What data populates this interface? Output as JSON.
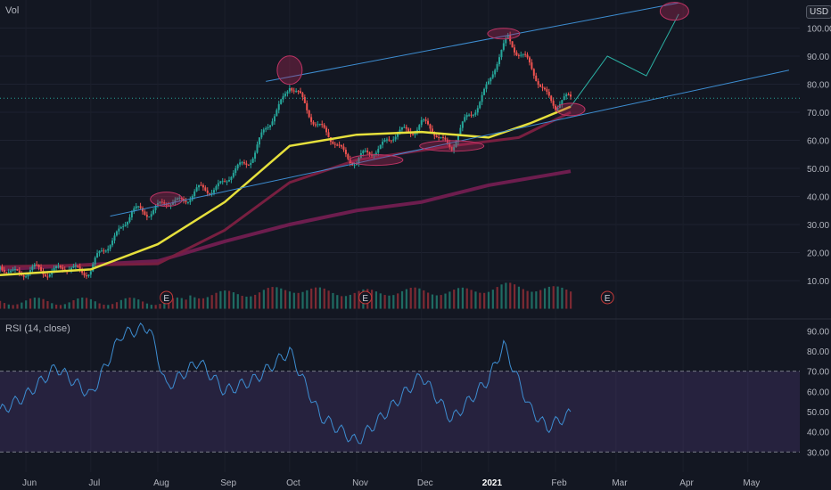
{
  "header": {
    "volume_label": "Vol",
    "currency": "USD"
  },
  "rsi_panel": {
    "label": "RSI (14, close)"
  },
  "last_price_label": "",
  "chart_data": {
    "type": "candlestick",
    "x_ticks": [
      "Jun",
      "Jul",
      "Aug",
      "Sep",
      "Oct",
      "Nov",
      "Dec",
      "2021",
      "Feb",
      "Mar",
      "Apr",
      "May"
    ],
    "price_axis": {
      "ticks": [
        100,
        90,
        80,
        70,
        60,
        50,
        40,
        30,
        20,
        10
      ],
      "suffix": ".00",
      "range": [
        -3,
        110
      ]
    },
    "rsi_axis": {
      "ticks": [
        90,
        80,
        70,
        60,
        50,
        40,
        30
      ],
      "suffix": ".00",
      "overbought": 70,
      "oversold": 30
    },
    "price_path": [
      [
        "2020-05-20",
        14
      ],
      [
        "2020-06-01",
        13
      ],
      [
        "2020-06-15",
        14
      ],
      [
        "2020-07-01",
        14
      ],
      [
        "2020-07-10",
        24
      ],
      [
        "2020-07-20",
        34
      ],
      [
        "2020-08-01",
        36
      ],
      [
        "2020-08-15",
        40
      ],
      [
        "2020-09-01",
        45
      ],
      [
        "2020-09-15",
        56
      ],
      [
        "2020-10-01",
        80
      ],
      [
        "2020-10-10",
        70
      ],
      [
        "2020-10-20",
        60
      ],
      [
        "2020-11-01",
        52
      ],
      [
        "2020-11-15",
        60
      ],
      [
        "2020-12-01",
        66
      ],
      [
        "2020-12-15",
        58
      ],
      [
        "2021-01-01",
        80
      ],
      [
        "2021-01-10",
        97
      ],
      [
        "2021-01-20",
        86
      ],
      [
        "2021-02-01",
        72
      ],
      [
        "2021-02-08",
        75
      ]
    ],
    "ma_fast": [
      [
        "2020-05-20",
        12
      ],
      [
        "2020-07-01",
        14
      ],
      [
        "2020-08-01",
        23
      ],
      [
        "2020-09-01",
        38
      ],
      [
        "2020-10-01",
        58
      ],
      [
        "2020-11-01",
        62
      ],
      [
        "2020-12-01",
        63
      ],
      [
        "2021-01-01",
        61
      ],
      [
        "2021-01-20",
        66
      ],
      [
        "2021-02-08",
        72
      ]
    ],
    "ma_mid": [
      [
        "2020-05-20",
        15
      ],
      [
        "2020-08-01",
        16
      ],
      [
        "2020-09-01",
        28
      ],
      [
        "2020-10-01",
        45
      ],
      [
        "2020-11-01",
        53
      ],
      [
        "2020-12-15",
        58
      ],
      [
        "2021-01-15",
        61
      ],
      [
        "2021-02-08",
        70
      ]
    ],
    "ma_slow": [
      [
        "2020-05-20",
        14
      ],
      [
        "2020-08-01",
        17
      ],
      [
        "2020-09-01",
        24
      ],
      [
        "2020-10-01",
        30
      ],
      [
        "2020-11-01",
        35
      ],
      [
        "2020-12-01",
        38
      ],
      [
        "2021-01-01",
        44
      ],
      [
        "2021-02-08",
        49
      ]
    ],
    "channel_upper": [
      [
        "2020-09-20",
        81
      ],
      [
        "2021-03-30",
        109
      ]
    ],
    "channel_lower": [
      [
        "2020-07-10",
        33
      ],
      [
        "2021-05-20",
        85
      ]
    ],
    "projection": [
      [
        "2021-02-08",
        72
      ],
      [
        "2021-02-25",
        90
      ],
      [
        "2021-03-15",
        83
      ],
      [
        "2021-03-30",
        105
      ]
    ],
    "rsi_path": [
      [
        "2020-05-20",
        50
      ],
      [
        "2020-06-01",
        58
      ],
      [
        "2020-06-15",
        72
      ],
      [
        "2020-07-01",
        58
      ],
      [
        "2020-07-15",
        88
      ],
      [
        "2020-07-28",
        92
      ],
      [
        "2020-08-05",
        62
      ],
      [
        "2020-08-20",
        75
      ],
      [
        "2020-09-01",
        60
      ],
      [
        "2020-09-15",
        66
      ],
      [
        "2020-10-01",
        80
      ],
      [
        "2020-10-15",
        48
      ],
      [
        "2020-11-01",
        35
      ],
      [
        "2020-11-15",
        50
      ],
      [
        "2020-12-01",
        68
      ],
      [
        "2020-12-15",
        46
      ],
      [
        "2021-01-01",
        66
      ],
      [
        "2021-01-08",
        83
      ],
      [
        "2021-01-20",
        52
      ],
      [
        "2021-01-28",
        42
      ],
      [
        "2021-02-08",
        49
      ]
    ],
    "earnings_markers": [
      "2020-08-05",
      "2020-11-05",
      "2021-02-25"
    ]
  }
}
